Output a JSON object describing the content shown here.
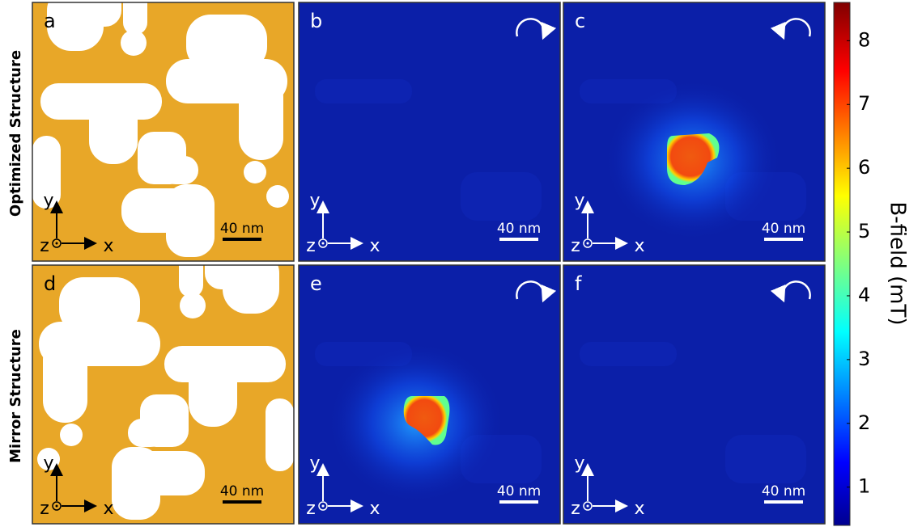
{
  "row_labels": [
    "Optimized Structure",
    "Mirror Structure"
  ],
  "panels": [
    {
      "letter": "a"
    },
    {
      "letter": "b"
    },
    {
      "letter": "c"
    },
    {
      "letter": "d"
    },
    {
      "letter": "e"
    },
    {
      "letter": "f"
    }
  ],
  "axis_labels": {
    "x": "x",
    "y": "y",
    "z": "z"
  },
  "scale_bar": "40 nm",
  "colorbar": {
    "label": "B-field (mT)",
    "lim": [
      0.4,
      8.6
    ],
    "ticks": [
      1,
      2,
      3,
      4,
      5,
      6,
      7,
      8
    ]
  }
}
